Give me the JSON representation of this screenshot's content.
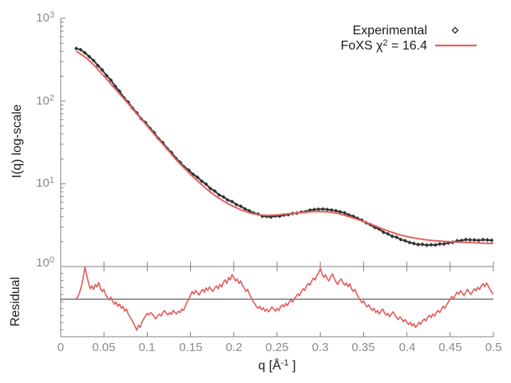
{
  "figure": {
    "colors": {
      "experimental": "#333333",
      "fit": "#e26261",
      "axis": "#808080",
      "tick_label": "#8a8a8a",
      "text": "#1a1a1a",
      "residual_baseline": "#333333",
      "background": "#ffffff"
    }
  },
  "legend": {
    "experimental_label": "Experimental",
    "fit_label_prefix": "FoXS χ",
    "fit_label_sup": "2",
    "fit_label_suffix": " = 16.4"
  },
  "axes": {
    "y_label": "I(q) log-scale",
    "residual_label": "Residual",
    "x_label_prefix": "q [Å",
    "x_label_sup": "-1",
    "x_label_suffix": " ]",
    "y_ticks": [
      {
        "base": "10",
        "exp": "3"
      },
      {
        "base": "10",
        "exp": "2"
      },
      {
        "base": "10",
        "exp": "1"
      },
      {
        "base": "10",
        "exp": "0"
      }
    ],
    "x_ticks": [
      "0",
      "0.05",
      "0.1",
      "0.15",
      "0.2",
      "0.25",
      "0.3",
      "0.35",
      "0.4",
      "0.45",
      "0.5"
    ]
  },
  "chart_data": {
    "type": "line",
    "title": "",
    "xlabel": "q [Å^-1]",
    "ylabel": "I(q) log-scale",
    "x_range": [
      0,
      0.5
    ],
    "y_scale": "log",
    "y_range": [
      1,
      1000
    ],
    "grid": false,
    "legend_position": "top-right",
    "chi2": 16.4,
    "series": [
      {
        "name": "Experimental",
        "style": "points-diamond",
        "color": "#333333",
        "q_start": 0.018,
        "q_step": 0.005,
        "I": [
          432,
          418,
          383,
          344,
          309,
          269,
          238,
          203,
          179,
          151,
          132,
          110,
          97,
          82,
          72,
          61,
          55,
          47,
          41.6,
          35,
          31.5,
          26.8,
          23.9,
          20.4,
          18.2,
          15.9,
          14.6,
          13.0,
          12.0,
          10.75,
          9.9,
          8.75,
          8.15,
          7.35,
          6.95,
          6.38,
          6.1,
          5.6,
          5.35,
          4.97,
          4.72,
          4.43,
          4.3,
          4.05,
          4.03,
          3.96,
          4.07,
          4.05,
          4.19,
          4.24,
          4.38,
          4.42,
          4.56,
          4.61,
          4.8,
          4.88,
          4.92,
          4.95,
          4.88,
          4.82,
          4.72,
          4.58,
          4.45,
          4.2,
          4.05,
          3.82,
          3.63,
          3.38,
          3.2,
          2.96,
          2.83,
          2.6,
          2.48,
          2.32,
          2.26,
          2.12,
          2.05,
          1.95,
          1.9,
          1.84,
          1.85,
          1.81,
          1.83,
          1.82,
          1.87,
          1.87,
          1.93,
          1.96,
          2.04,
          2.06,
          2.12,
          2.1,
          2.09,
          2.07,
          2.11,
          2.09,
          2.07
        ]
      },
      {
        "name": "FoXS fit",
        "style": "line",
        "color": "#e26261",
        "q": [
          0.018,
          0.02,
          0.025,
          0.03,
          0.035,
          0.04,
          0.045,
          0.05,
          0.055,
          0.06,
          0.065,
          0.07,
          0.075,
          0.08,
          0.085,
          0.09,
          0.095,
          0.1,
          0.105,
          0.11,
          0.115,
          0.12,
          0.125,
          0.13,
          0.135,
          0.14,
          0.145,
          0.15,
          0.16,
          0.17,
          0.18,
          0.19,
          0.2,
          0.21,
          0.22,
          0.23,
          0.24,
          0.25,
          0.26,
          0.27,
          0.28,
          0.29,
          0.3,
          0.31,
          0.32,
          0.33,
          0.34,
          0.35,
          0.36,
          0.37,
          0.38,
          0.39,
          0.4,
          0.41,
          0.42,
          0.43,
          0.44,
          0.45,
          0.46,
          0.47,
          0.48,
          0.49,
          0.5
        ],
        "I": [
          400,
          388,
          358,
          330,
          295,
          262,
          229,
          200,
          175,
          152,
          133,
          116,
          101,
          88,
          76,
          66,
          57.5,
          50,
          43.3,
          37.5,
          32.7,
          28.5,
          24.8,
          21.5,
          18.8,
          16.5,
          14.7,
          13.0,
          10.4,
          8.4,
          7.0,
          6.0,
          5.3,
          4.75,
          4.4,
          4.2,
          4.15,
          4.2,
          4.3,
          4.4,
          4.5,
          4.6,
          4.62,
          4.55,
          4.4,
          4.1,
          3.8,
          3.5,
          3.2,
          2.9,
          2.65,
          2.45,
          2.3,
          2.2,
          2.12,
          2.06,
          2.02,
          1.99,
          1.97,
          1.95,
          1.93,
          1.91,
          1.9
        ]
      }
    ],
    "residual": {
      "label": "Residual",
      "baseline": 1.0,
      "q_start": 0.018,
      "q_step": 0.002,
      "v": [
        1.02,
        1.08,
        1.2,
        1.38,
        1.62,
        1.93,
        1.7,
        1.48,
        1.3,
        1.38,
        1.28,
        1.42,
        1.35,
        1.48,
        1.3,
        1.22,
        1.28,
        1.12,
        1.05,
        0.98,
        1.06,
        0.94,
        0.86,
        0.92,
        0.8,
        0.86,
        0.74,
        0.8,
        0.66,
        0.72,
        0.58,
        0.5,
        0.42,
        0.32,
        0.22,
        0.12,
        0.26,
        0.2,
        0.36,
        0.44,
        0.52,
        0.6,
        0.55,
        0.62,
        0.57,
        0.5,
        0.44,
        0.52,
        0.58,
        0.52,
        0.62,
        0.68,
        0.6,
        0.55,
        0.62,
        0.57,
        0.68,
        0.62,
        0.58,
        0.66,
        0.62,
        0.72,
        0.68,
        0.8,
        0.92,
        1.0,
        1.12,
        1.22,
        1.15,
        1.25,
        1.18,
        1.12,
        1.22,
        1.28,
        1.2,
        1.32,
        1.25,
        1.35,
        1.28,
        1.22,
        1.32,
        1.38,
        1.3,
        1.42,
        1.35,
        1.48,
        1.55,
        1.45,
        1.62,
        1.55,
        1.7,
        1.62,
        1.52,
        1.58,
        1.45,
        1.52,
        1.4,
        1.32,
        1.22,
        1.28,
        1.15,
        1.05,
        0.95,
        0.88,
        0.8,
        0.74,
        0.8,
        0.7,
        0.76,
        0.66,
        0.72,
        0.64,
        0.7,
        0.78,
        0.72,
        0.66,
        0.74,
        0.68,
        0.78,
        0.84,
        0.78,
        0.88,
        0.82,
        0.92,
        0.98,
        0.92,
        1.02,
        1.08,
        1.15,
        1.1,
        1.22,
        1.3,
        1.25,
        1.38,
        1.45,
        1.4,
        1.52,
        1.6,
        1.55,
        1.68,
        1.75,
        1.88,
        1.72,
        1.62,
        1.7,
        1.58,
        1.52,
        1.64,
        1.72,
        1.6,
        1.5,
        1.42,
        1.52,
        1.58,
        1.48,
        1.4,
        1.46,
        1.36,
        1.44,
        1.3,
        1.22,
        1.28,
        1.15,
        1.06,
        0.98,
        0.9,
        0.95,
        0.85,
        0.78,
        0.84,
        0.74,
        0.68,
        0.74,
        0.62,
        0.68,
        0.58,
        0.66,
        0.72,
        0.62,
        0.54,
        0.6,
        0.5,
        0.58,
        0.64,
        0.56,
        0.48,
        0.42,
        0.5,
        0.44,
        0.36,
        0.42,
        0.34,
        0.28,
        0.34,
        0.24,
        0.3,
        0.2,
        0.26,
        0.34,
        0.28,
        0.38,
        0.44,
        0.38,
        0.48,
        0.54,
        0.48,
        0.58,
        0.52,
        0.62,
        0.68,
        0.62,
        0.72,
        0.8,
        0.74,
        0.85,
        0.92,
        1.0,
        1.08,
        1.02,
        1.12,
        1.2,
        1.14,
        1.24,
        1.18,
        1.1,
        1.2,
        1.28,
        1.2,
        1.14,
        1.22,
        1.3,
        1.24,
        1.34,
        1.28,
        1.38,
        1.44,
        1.36,
        1.46,
        1.38,
        1.28,
        1.2,
        1.14
      ]
    }
  }
}
